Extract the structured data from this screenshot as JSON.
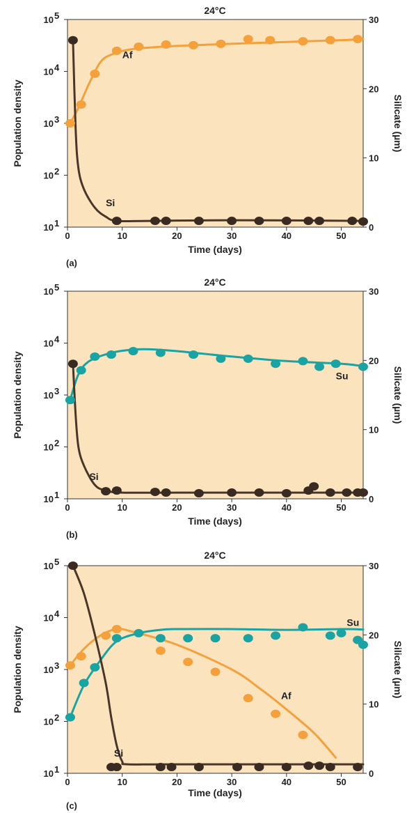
{
  "colors": {
    "plot_bg": "#fbe4bd",
    "Af": "#f4a13c",
    "Su": "#1aa3a3",
    "Si": "#4a3628",
    "Si_marker": "#3a2b22"
  },
  "chart_data": [
    {
      "type": "scatter",
      "panel_label": "(a)",
      "title": "24°C",
      "xlabel": "Time (days)",
      "ylabel_left": "Population density",
      "ylabel_right": "Silicate (µm)",
      "xlim": [
        0,
        54
      ],
      "x_ticks": [
        0,
        10,
        20,
        30,
        40,
        50
      ],
      "ylim_left_log10": [
        1,
        5
      ],
      "y_left_ticks": [
        {
          "exp": 1,
          "label": "10"
        },
        {
          "exp": 2,
          "label": "10"
        },
        {
          "exp": 3,
          "label": "10"
        },
        {
          "exp": 4,
          "label": "10"
        },
        {
          "exp": 5,
          "label": "10"
        }
      ],
      "y_left_scale": "log",
      "ylim_right": [
        0,
        30
      ],
      "y_right_ticks": [
        0,
        10,
        20,
        30
      ],
      "grid": false,
      "series": [
        {
          "name": "Af",
          "axis": "left",
          "color_key": "Af",
          "points": [
            [
              0.5,
              1000
            ],
            [
              2.5,
              2300
            ],
            [
              5,
              9000
            ],
            [
              9,
              25000
            ],
            [
              13,
              30000
            ],
            [
              18,
              33000
            ],
            [
              23,
              32000
            ],
            [
              28,
              34000
            ],
            [
              33,
              42000
            ],
            [
              37,
              40000
            ],
            [
              43,
              38000
            ],
            [
              48,
              40000
            ],
            [
              53,
              42000
            ]
          ],
          "curve": [
            [
              0.5,
              1000
            ],
            [
              2,
              2000
            ],
            [
              4,
              6000
            ],
            [
              6,
              15000
            ],
            [
              8,
              21000
            ],
            [
              12,
              27000
            ],
            [
              20,
              31000
            ],
            [
              30,
              34000
            ],
            [
              40,
              37000
            ],
            [
              50,
              40000
            ],
            [
              54,
              42000
            ]
          ],
          "label_at": [
            10,
            18000
          ]
        },
        {
          "name": "Si",
          "axis": "right",
          "color_key": "Si",
          "points": [
            [
              1,
              27
            ],
            [
              9,
              0.9
            ],
            [
              16,
              0.9
            ],
            [
              18,
              0.9
            ],
            [
              24,
              0.9
            ],
            [
              30,
              0.9
            ],
            [
              35,
              0.9
            ],
            [
              40,
              0.9
            ],
            [
              44,
              0.9
            ],
            [
              46,
              0.9
            ],
            [
              52,
              0.9
            ],
            [
              54,
              0.8
            ]
          ],
          "curve": [
            [
              1,
              27
            ],
            [
              1.5,
              14
            ],
            [
              2,
              8.5
            ],
            [
              3,
              5.5
            ],
            [
              5,
              2.8
            ],
            [
              7,
              1.5
            ],
            [
              9,
              0.9
            ],
            [
              15,
              0.9
            ],
            [
              30,
              1.0
            ],
            [
              54,
              0.9
            ]
          ],
          "label_at": [
            7,
            3
          ]
        }
      ]
    },
    {
      "type": "scatter",
      "panel_label": "(b)",
      "title": "24°C",
      "xlabel": "Time (days)",
      "ylabel_left": "Population density",
      "ylabel_right": "Silicate (µm)",
      "xlim": [
        0,
        54
      ],
      "x_ticks": [
        0,
        10,
        20,
        30,
        40,
        50
      ],
      "ylim_left_log10": [
        1,
        5
      ],
      "y_left_ticks": [
        {
          "exp": 1,
          "label": "10"
        },
        {
          "exp": 2,
          "label": "10"
        },
        {
          "exp": 3,
          "label": "10"
        },
        {
          "exp": 4,
          "label": "10"
        },
        {
          "exp": 5,
          "label": "10"
        }
      ],
      "y_left_scale": "log",
      "ylim_right": [
        0,
        30
      ],
      "y_right_ticks": [
        0,
        10,
        20,
        30
      ],
      "grid": false,
      "series": [
        {
          "name": "Su",
          "axis": "left",
          "color_key": "Su",
          "points": [
            [
              0.5,
              800
            ],
            [
              2.5,
              3000
            ],
            [
              5,
              5500
            ],
            [
              8,
              6000
            ],
            [
              12,
              7000
            ],
            [
              17,
              6500
            ],
            [
              23,
              6000
            ],
            [
              28,
              5000
            ],
            [
              33,
              5000
            ],
            [
              38,
              4000
            ],
            [
              43,
              4500
            ],
            [
              46,
              3500
            ],
            [
              49,
              4000
            ],
            [
              54,
              3500
            ]
          ],
          "curve": [
            [
              0.5,
              800
            ],
            [
              2,
              2500
            ],
            [
              4,
              4500
            ],
            [
              8,
              6500
            ],
            [
              12,
              7500
            ],
            [
              15,
              7600
            ],
            [
              20,
              7000
            ],
            [
              30,
              5500
            ],
            [
              40,
              4500
            ],
            [
              50,
              4000
            ],
            [
              54,
              3600
            ]
          ],
          "label_at": [
            49,
            2000
          ]
        },
        {
          "name": "Si",
          "axis": "right",
          "color_key": "Si",
          "points": [
            [
              1,
              19.5
            ],
            [
              7,
              1.1
            ],
            [
              9,
              1.2
            ],
            [
              16,
              1.0
            ],
            [
              18,
              0.9
            ],
            [
              24,
              0.8
            ],
            [
              30,
              0.9
            ],
            [
              35,
              0.9
            ],
            [
              40,
              0.8
            ],
            [
              44,
              1.2
            ],
            [
              45,
              1.8
            ],
            [
              48,
              0.9
            ],
            [
              51,
              0.9
            ],
            [
              53,
              0.9
            ],
            [
              54,
              0.9
            ]
          ],
          "curve": [
            [
              1,
              19.5
            ],
            [
              1.5,
              12
            ],
            [
              2,
              7.5
            ],
            [
              3,
              4.8
            ],
            [
              5,
              2
            ],
            [
              7,
              1.2
            ],
            [
              10,
              0.9
            ],
            [
              20,
              0.9
            ],
            [
              30,
              0.9
            ],
            [
              54,
              0.9
            ]
          ],
          "label_at": [
            4,
            2.7
          ]
        }
      ]
    },
    {
      "type": "scatter",
      "panel_label": "(c)",
      "title": "24°C",
      "xlabel": "Time (days)",
      "ylabel_left": "Population density",
      "ylabel_right": "Silicate (µm)",
      "xlim": [
        0,
        54
      ],
      "x_ticks": [
        0,
        10,
        20,
        30,
        40,
        50
      ],
      "ylim_left_log10": [
        1,
        5
      ],
      "y_left_ticks": [
        {
          "exp": 1,
          "label": "10"
        },
        {
          "exp": 2,
          "label": "10"
        },
        {
          "exp": 3,
          "label": "10"
        },
        {
          "exp": 4,
          "label": "10"
        },
        {
          "exp": 5,
          "label": "10"
        }
      ],
      "y_left_scale": "log",
      "ylim_right": [
        0,
        30
      ],
      "y_right_ticks": [
        0,
        10,
        20,
        30
      ],
      "grid": false,
      "series": [
        {
          "name": "Af",
          "axis": "left",
          "color_key": "Af",
          "points": [
            [
              0.5,
              1200
            ],
            [
              2.5,
              1800
            ],
            [
              7,
              4500
            ],
            [
              9,
              6000
            ],
            [
              17,
              2300
            ],
            [
              22,
              1400
            ],
            [
              27,
              900
            ],
            [
              33,
              280
            ],
            [
              38,
              140
            ],
            [
              43,
              55
            ]
          ],
          "curve": [
            [
              0.5,
              1200
            ],
            [
              3,
              2500
            ],
            [
              6,
              4500
            ],
            [
              9,
              6000
            ],
            [
              12,
              5300
            ],
            [
              20,
              3000
            ],
            [
              30,
              1000
            ],
            [
              35,
              440
            ],
            [
              40,
              170
            ],
            [
              45,
              60
            ],
            [
              49,
              20
            ]
          ],
          "label_at": [
            39,
            270
          ]
        },
        {
          "name": "Su",
          "axis": "left",
          "color_key": "Su",
          "points": [
            [
              0.5,
              120
            ],
            [
              3,
              550
            ],
            [
              5,
              1100
            ],
            [
              9,
              4000
            ],
            [
              13,
              5000
            ],
            [
              17,
              4000
            ],
            [
              22,
              4000
            ],
            [
              27,
              4000
            ],
            [
              33,
              4000
            ],
            [
              38,
              4500
            ],
            [
              43,
              6500
            ],
            [
              48,
              4500
            ],
            [
              50,
              5000
            ],
            [
              53,
              3700
            ],
            [
              54,
              3000
            ]
          ],
          "curve": [
            [
              0.5,
              120
            ],
            [
              3,
              500
            ],
            [
              6,
              1500
            ],
            [
              9,
              3500
            ],
            [
              13,
              5000
            ],
            [
              17,
              5800
            ],
            [
              20,
              6000
            ],
            [
              30,
              6000
            ],
            [
              40,
              5800
            ],
            [
              50,
              6000
            ],
            [
              54,
              5900
            ]
          ],
          "label_at": [
            51,
            6900
          ]
        },
        {
          "name": "Si",
          "axis": "right",
          "color_key": "Si",
          "points": [
            [
              1,
              30
            ],
            [
              8,
              0.9
            ],
            [
              9,
              0.9
            ],
            [
              17,
              0.9
            ],
            [
              19,
              0.9
            ],
            [
              24,
              0.9
            ],
            [
              31,
              0.9
            ],
            [
              35,
              0.9
            ],
            [
              40,
              0.9
            ],
            [
              44,
              1.1
            ],
            [
              46,
              1.1
            ],
            [
              48,
              0.9
            ],
            [
              53,
              0.9
            ]
          ],
          "curve": [
            [
              1,
              30
            ],
            [
              3,
              26
            ],
            [
              5,
              20
            ],
            [
              7,
              13
            ],
            [
              8,
              8
            ],
            [
              9,
              4
            ],
            [
              10,
              1.7
            ],
            [
              11,
              1.3
            ],
            [
              20,
              1.3
            ],
            [
              54,
              1.3
            ]
          ],
          "label_at": [
            8.5,
            2.4
          ]
        }
      ]
    }
  ]
}
